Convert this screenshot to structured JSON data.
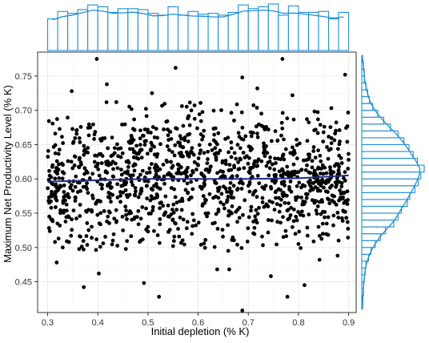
{
  "chart_data": {
    "type": "scatter",
    "title": "",
    "xlabel": "Initial depletion (% K)",
    "ylabel": "Maximum Net Productivity Level (% K)",
    "xlim": [
      0.28,
      0.915
    ],
    "ylim": [
      0.405,
      0.785
    ],
    "x_ticks": [
      0.3,
      0.4,
      0.5,
      0.6,
      0.7,
      0.8,
      0.9
    ],
    "y_ticks": [
      0.45,
      0.5,
      0.55,
      0.6,
      0.65,
      0.7,
      0.75
    ],
    "x_tick_labels": [
      "0.3",
      "0.4",
      "0.5",
      "0.6",
      "0.7",
      "0.8",
      "0.9"
    ],
    "y_tick_labels": [
      "0.45",
      "0.50",
      "0.55",
      "0.60",
      "0.65",
      "0.70",
      "0.75"
    ],
    "grid": true,
    "legend": "none",
    "points": [
      [
        0.398,
        0.775
      ],
      [
        0.768,
        0.775
      ],
      [
        0.555,
        0.762
      ],
      [
        0.893,
        0.752
      ],
      [
        0.418,
        0.738
      ],
      [
        0.688,
        0.748
      ],
      [
        0.718,
        0.732
      ],
      [
        0.508,
        0.725
      ],
      [
        0.348,
        0.728
      ],
      [
        0.788,
        0.722
      ],
      [
        0.437,
        0.712
      ],
      [
        0.31,
        0.62
      ],
      [
        0.33,
        0.61
      ],
      [
        0.36,
        0.595
      ],
      [
        0.45,
        0.58
      ],
      [
        0.52,
        0.6
      ],
      [
        0.6,
        0.62
      ],
      [
        0.7,
        0.59
      ],
      [
        0.8,
        0.61
      ],
      [
        0.86,
        0.57
      ],
      [
        0.42,
        0.545
      ],
      [
        0.5,
        0.53
      ],
      [
        0.62,
        0.55
      ],
      [
        0.74,
        0.54
      ],
      [
        0.84,
        0.53
      ],
      [
        0.385,
        0.675
      ],
      [
        0.5,
        0.668
      ],
      [
        0.61,
        0.662
      ],
      [
        0.74,
        0.672
      ],
      [
        0.85,
        0.668
      ],
      [
        0.33,
        0.5
      ],
      [
        0.43,
        0.51
      ],
      [
        0.55,
        0.502
      ],
      [
        0.66,
        0.495
      ],
      [
        0.8,
        0.505
      ],
      [
        0.88,
        0.51
      ],
      [
        0.318,
        0.478
      ],
      [
        0.372,
        0.442
      ],
      [
        0.492,
        0.448
      ],
      [
        0.522,
        0.428
      ],
      [
        0.688,
        0.408
      ],
      [
        0.662,
        0.468
      ],
      [
        0.638,
        0.468
      ],
      [
        0.778,
        0.428
      ],
      [
        0.812,
        0.445
      ],
      [
        0.842,
        0.482
      ],
      [
        0.402,
        0.462
      ],
      [
        0.745,
        0.458
      ],
      [
        0.878,
        0.488
      ]
    ],
    "trend_line": {
      "x": [
        0.3,
        0.4,
        0.5,
        0.6,
        0.7,
        0.8,
        0.9
      ],
      "y": [
        0.596,
        0.598,
        0.6,
        0.6,
        0.6,
        0.601,
        0.605
      ]
    },
    "x_histogram": {
      "bin_edges": [
        0.3,
        0.32,
        0.34,
        0.36,
        0.38,
        0.4,
        0.42,
        0.44,
        0.46,
        0.48,
        0.5,
        0.52,
        0.54,
        0.56,
        0.58,
        0.6,
        0.62,
        0.64,
        0.66,
        0.68,
        0.7,
        0.72,
        0.74,
        0.76,
        0.78,
        0.8,
        0.82,
        0.84,
        0.86,
        0.88,
        0.9
      ],
      "counts": [
        34,
        42,
        40,
        44,
        49,
        47,
        41,
        45,
        45,
        44,
        40,
        38,
        47,
        38,
        42,
        39,
        40,
        38,
        41,
        49,
        45,
        47,
        50,
        38,
        48,
        41,
        41,
        42,
        34,
        41
      ]
    },
    "y_histogram": {
      "bin_edges": [
        0.41,
        0.42,
        0.43,
        0.44,
        0.45,
        0.46,
        0.47,
        0.48,
        0.49,
        0.5,
        0.51,
        0.52,
        0.53,
        0.54,
        0.55,
        0.56,
        0.57,
        0.58,
        0.59,
        0.6,
        0.61,
        0.62,
        0.63,
        0.64,
        0.65,
        0.66,
        0.67,
        0.68,
        0.69,
        0.7,
        0.71,
        0.72,
        0.73,
        0.74,
        0.75,
        0.76,
        0.77,
        0.78
      ],
      "counts": [
        1,
        1,
        2,
        2,
        3,
        4,
        5,
        8,
        11,
        16,
        22,
        28,
        38,
        43,
        47,
        54,
        57,
        63,
        67,
        70,
        74,
        66,
        61,
        56,
        50,
        43,
        34,
        26,
        19,
        13,
        9,
        7,
        5,
        3,
        3,
        2,
        1
      ]
    },
    "colors": {
      "points": "#000000",
      "trend_line": "#1f2a8c",
      "histogram": "#1f8fd6",
      "grid": "#ebebeb",
      "panel_border": "#333333"
    }
  }
}
